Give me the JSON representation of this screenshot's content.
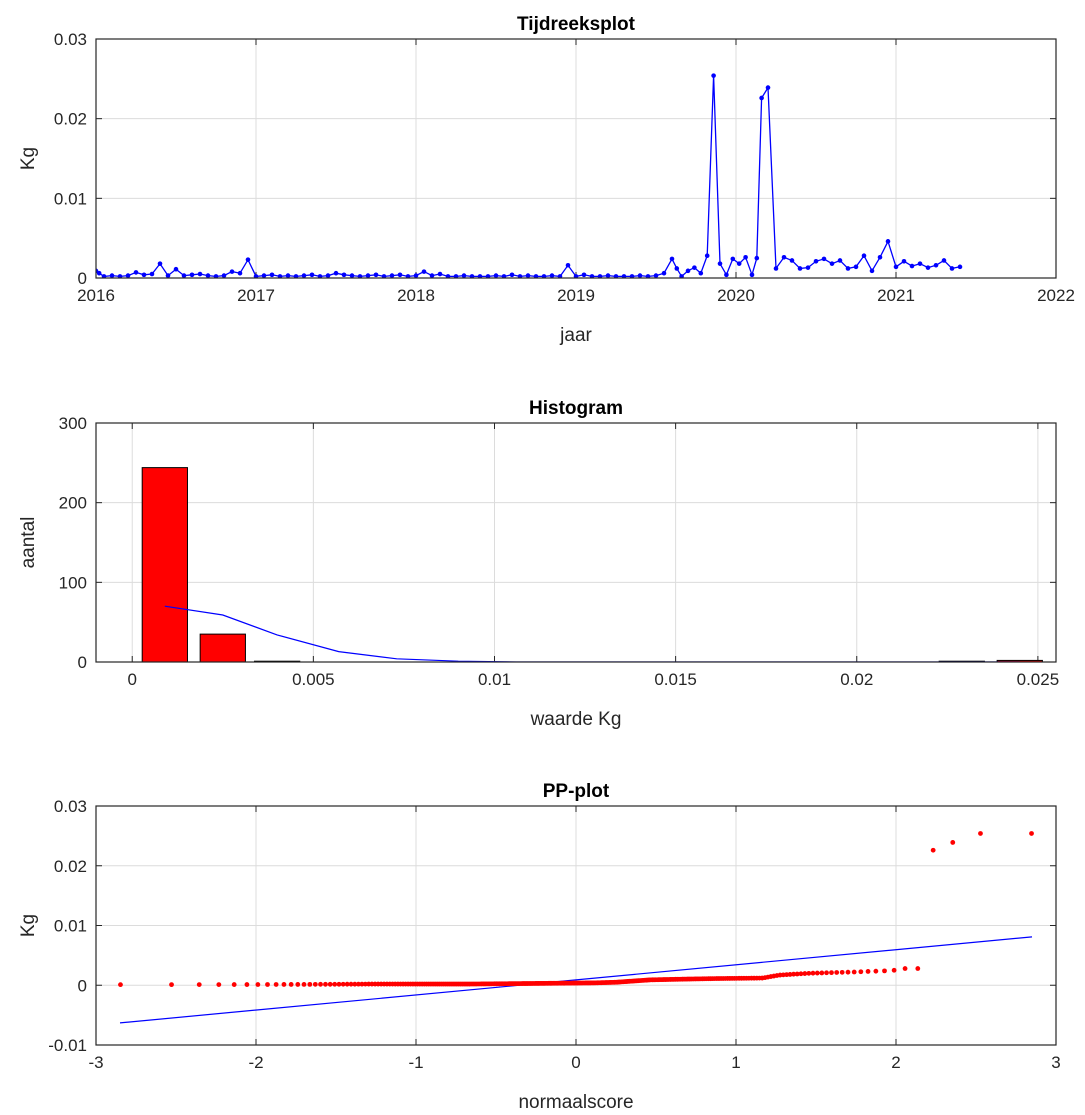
{
  "chart_data": [
    {
      "type": "line",
      "title": "Tijdreeksplot",
      "xlabel": "jaar",
      "ylabel": "Kg",
      "xlim": [
        2016,
        2022
      ],
      "ylim": [
        0,
        0.03
      ],
      "x_ticks": [
        "2016",
        "2017",
        "2018",
        "2019",
        "2020",
        "2021",
        "2022"
      ],
      "y_ticks": [
        "0",
        "0.01",
        "0.02",
        "0.03"
      ],
      "grid": true,
      "line_color": "#0000ff",
      "marker": "dot",
      "series": [
        {
          "x": [
            2016.0,
            2016.02,
            2016.05,
            2016.1,
            2016.15,
            2016.2,
            2016.25,
            2016.3,
            2016.35,
            2016.4,
            2016.45,
            2016.5,
            2016.55,
            2016.6,
            2016.65,
            2016.7,
            2016.75,
            2016.8,
            2016.85,
            2016.9,
            2016.95,
            2017.0,
            2017.05,
            2017.1,
            2017.15,
            2017.2,
            2017.25,
            2017.3,
            2017.35,
            2017.4,
            2017.45,
            2017.5,
            2017.55,
            2017.6,
            2017.65,
            2017.7,
            2017.75,
            2017.8,
            2017.85,
            2017.9,
            2017.95,
            2018.0,
            2018.05,
            2018.1,
            2018.15,
            2018.2,
            2018.25,
            2018.3,
            2018.35,
            2018.4,
            2018.45,
            2018.5,
            2018.55,
            2018.6,
            2018.65,
            2018.7,
            2018.75,
            2018.8,
            2018.85,
            2018.9,
            2018.95,
            2019.0,
            2019.05,
            2019.1,
            2019.15,
            2019.2,
            2019.25,
            2019.3,
            2019.35,
            2019.4,
            2019.45,
            2019.5,
            2019.55,
            2019.6,
            2019.63,
            2019.66,
            2019.7,
            2019.74,
            2019.78,
            2019.82,
            2019.86,
            2019.9,
            2019.94,
            2019.98,
            2020.02,
            2020.06,
            2020.1,
            2020.13,
            2020.16,
            2020.2,
            2020.25,
            2020.3,
            2020.35,
            2020.4,
            2020.45,
            2020.5,
            2020.55,
            2020.6,
            2020.65,
            2020.7,
            2020.75,
            2020.8,
            2020.85,
            2020.9,
            2020.95,
            2021.0,
            2021.05,
            2021.1,
            2021.15,
            2021.2,
            2021.25,
            2021.3,
            2021.35,
            2021.4
          ],
          "y": [
            0.0009,
            0.0006,
            0.0002,
            0.0003,
            0.0002,
            0.0003,
            0.0007,
            0.0004,
            0.0005,
            0.0018,
            0.0003,
            0.0011,
            0.0003,
            0.0004,
            0.0005,
            0.0003,
            0.0002,
            0.0003,
            0.0008,
            0.0006,
            0.0023,
            0.0002,
            0.0003,
            0.0004,
            0.0002,
            0.0003,
            0.0002,
            0.0003,
            0.0004,
            0.0002,
            0.0003,
            0.0006,
            0.0004,
            0.0003,
            0.0002,
            0.0003,
            0.0004,
            0.0002,
            0.0003,
            0.0004,
            0.0002,
            0.0003,
            0.0008,
            0.0003,
            0.0005,
            0.0002,
            0.0002,
            0.0003,
            0.0002,
            0.0002,
            0.0002,
            0.0003,
            0.0002,
            0.0004,
            0.0002,
            0.0003,
            0.0002,
            0.0002,
            0.0003,
            0.0002,
            0.0016,
            0.0002,
            0.0004,
            0.0002,
            0.0002,
            0.0003,
            0.0002,
            0.0002,
            0.0002,
            0.0003,
            0.0002,
            0.0003,
            0.0006,
            0.0024,
            0.0012,
            0.0002,
            0.0009,
            0.0013,
            0.0006,
            0.0028,
            0.0254,
            0.0018,
            0.0004,
            0.0024,
            0.0018,
            0.0026,
            0.0004,
            0.0025,
            0.0226,
            0.0239,
            0.0012,
            0.0026,
            0.0022,
            0.0012,
            0.0013,
            0.0021,
            0.0024,
            0.0018,
            0.0022,
            0.0012,
            0.0014,
            0.0028,
            0.0009,
            0.0026,
            0.0046,
            0.0014,
            0.0021,
            0.0015,
            0.0018,
            0.0013,
            0.0016,
            0.0022,
            0.0012,
            0.0014
          ]
        }
      ]
    },
    {
      "type": "bar",
      "title": "Histogram",
      "xlabel": "waarde Kg",
      "ylabel": "aantal",
      "xlim": [
        -0.001,
        0.0255
      ],
      "ylim": [
        0,
        300
      ],
      "x_ticks": [
        "0",
        "0.005",
        "0.01",
        "0.015",
        "0.02",
        "0.025"
      ],
      "y_ticks": [
        "0",
        "100",
        "200",
        "300"
      ],
      "grid": true,
      "bar_color": "#ff0000",
      "bins": [
        {
          "center": 0.0009,
          "value": 244
        },
        {
          "center": 0.0025,
          "value": 35
        },
        {
          "center": 0.004,
          "value": 1
        },
        {
          "center": 0.0229,
          "value": 1
        },
        {
          "center": 0.0245,
          "value": 2
        }
      ],
      "bin_width": 0.00125,
      "overlay": {
        "color": "#0000ff",
        "x": [
          0.0009,
          0.0025,
          0.004,
          0.0057,
          0.0073,
          0.009,
          0.0106,
          0.0122,
          0.014,
          0.016,
          0.018,
          0.02,
          0.022,
          0.0245
        ],
        "y": [
          70,
          59,
          34,
          13,
          4,
          1,
          0,
          0,
          0,
          0,
          0,
          0,
          0,
          0
        ]
      }
    },
    {
      "type": "scatter",
      "title": "PP-plot",
      "xlabel": "normaalscore",
      "ylabel": "Kg",
      "xlim": [
        -3,
        3
      ],
      "ylim": [
        -0.01,
        0.03
      ],
      "x_ticks": [
        "-3",
        "-2",
        "-1",
        "0",
        "1",
        "2",
        "3"
      ],
      "y_ticks": [
        "-0.01",
        "0",
        "0.01",
        "0.02",
        "0.03"
      ],
      "grid": true,
      "point_color": "#ff0000",
      "line_color": "#0000ff",
      "fit_line": {
        "x": [
          -2.85,
          2.85
        ],
        "y": [
          -0.0063,
          0.0081
        ]
      },
      "points": {
        "n": 283,
        "sorted_values": [
          [
            0.0,
            0.0001
          ],
          [
            0.1,
            0.0002
          ],
          [
            0.25,
            0.0002
          ],
          [
            0.4,
            0.0003
          ],
          [
            0.55,
            0.0004
          ],
          [
            0.6,
            0.0005
          ],
          [
            0.68,
            0.0009
          ],
          [
            0.8,
            0.0011
          ],
          [
            0.88,
            0.0012
          ],
          [
            0.9,
            0.0017
          ],
          [
            0.93,
            0.002
          ],
          [
            0.96,
            0.0022
          ],
          [
            0.975,
            0.0024
          ],
          [
            0.982,
            0.0026
          ],
          [
            0.986,
            0.0028
          ],
          [
            0.989,
            0.0046
          ],
          [
            0.992,
            0.0226
          ],
          [
            0.996,
            0.0239
          ],
          [
            1.0,
            0.0254
          ]
        ]
      }
    }
  ]
}
